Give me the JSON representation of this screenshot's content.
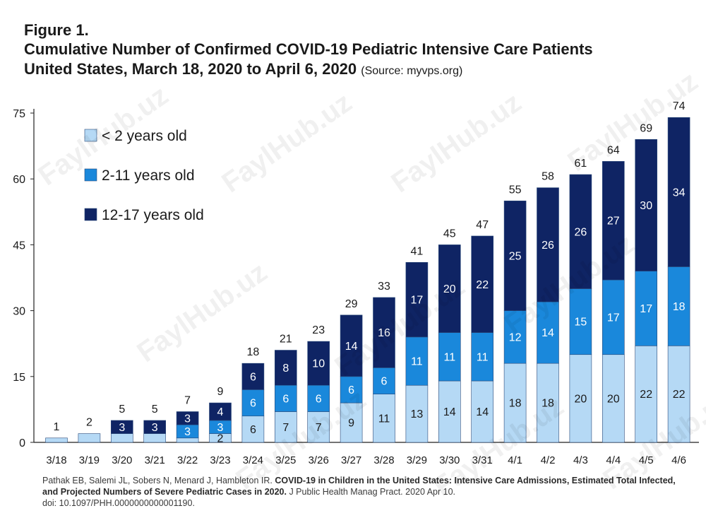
{
  "figure": {
    "label": "Figure 1.",
    "title_line1": "Cumulative Number of Confirmed COVID-19 Pediatric Intensive Care Patients",
    "title_line2": "United States, March 18, 2020 to April 6, 2020",
    "source": "(Source: myvps.org)"
  },
  "citation": {
    "authors": "Pathak EB, Salemi JL, Sobers N, Menard J, Hambleton IR. ",
    "title": "COVID-19 in Children in the United States: Intensive Care Admissions, Estimated Total Infected, and Projected Numbers of Severe Pediatric Cases in 2020.",
    "journal": " J Public Health Manag Pract. 2020 Apr 10.",
    "doi": "doi: 10.1097/PHH.0000000000001190."
  },
  "watermark": "FaylHub.uz",
  "colors": {
    "under2": "#b5d9f5",
    "age2_11": "#1a88db",
    "age12_17": "#0f2464",
    "axis": "#222222"
  },
  "chart_data": {
    "type": "bar",
    "stacked": true,
    "categories": [
      "3/18",
      "3/19",
      "3/20",
      "3/21",
      "3/22",
      "3/23",
      "3/24",
      "3/25",
      "3/26",
      "3/27",
      "3/28",
      "3/29",
      "3/30",
      "3/31",
      "4/1",
      "4/2",
      "4/3",
      "4/4",
      "4/5",
      "4/6"
    ],
    "series": [
      {
        "name": "< 2 years  old",
        "color": "#b5d9f5",
        "values": [
          1,
          2,
          2,
          2,
          1,
          2,
          6,
          7,
          7,
          9,
          11,
          13,
          14,
          14,
          18,
          18,
          20,
          20,
          22,
          22
        ],
        "labels": [
          null,
          null,
          null,
          null,
          null,
          "2",
          "6",
          "7",
          "7",
          "9",
          "11",
          "13",
          "14",
          "14",
          "18",
          "18",
          "20",
          "20",
          "22",
          "22"
        ]
      },
      {
        "name": "2-11 years old",
        "color": "#1a88db",
        "values": [
          0,
          0,
          0,
          0,
          3,
          3,
          6,
          6,
          6,
          6,
          6,
          11,
          11,
          11,
          12,
          14,
          15,
          17,
          17,
          18
        ],
        "labels": [
          null,
          null,
          null,
          null,
          "3",
          "3",
          "6",
          "6",
          "6",
          "6",
          "6",
          "11",
          "11",
          "11",
          "12",
          "14",
          "15",
          "17",
          "17",
          "18"
        ]
      },
      {
        "name": "12-17 years old",
        "color": "#0f2464",
        "values": [
          0,
          0,
          3,
          3,
          3,
          4,
          6,
          8,
          10,
          14,
          16,
          17,
          20,
          22,
          25,
          26,
          26,
          27,
          30,
          34
        ],
        "labels": [
          null,
          null,
          "3",
          "3",
          "3",
          "4",
          "6",
          "8",
          "10",
          "14",
          "16",
          "17",
          "20",
          "22",
          "25",
          "26",
          "26",
          "27",
          "30",
          "34"
        ]
      }
    ],
    "totals": [
      1,
      2,
      5,
      5,
      7,
      9,
      18,
      21,
      23,
      29,
      33,
      41,
      45,
      47,
      55,
      58,
      61,
      64,
      69,
      74
    ],
    "ylim": [
      0,
      75
    ],
    "yticks": [
      0,
      15,
      30,
      45,
      60,
      75
    ],
    "xlabel": "",
    "ylabel": "",
    "grid": false,
    "legend_position": "top-left"
  }
}
